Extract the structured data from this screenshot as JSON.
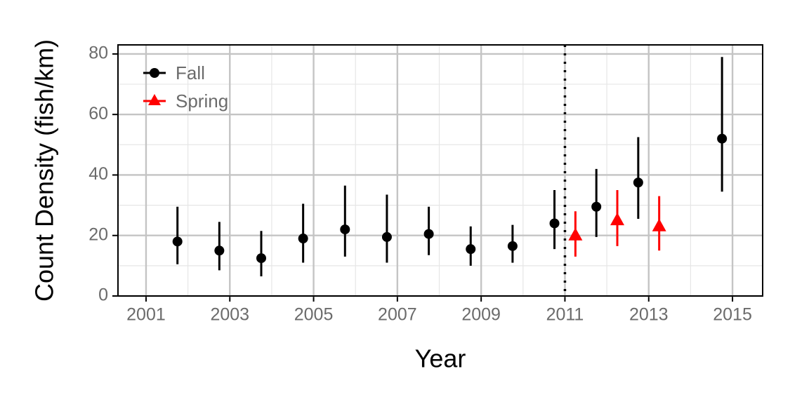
{
  "chart_data": {
    "type": "errorbar",
    "x_label": "Year",
    "y_label": "Count Density (fish/km)",
    "xlim": [
      2000.33,
      2015.72
    ],
    "ylim": [
      0,
      83
    ],
    "xticks": [
      2001,
      2003,
      2005,
      2007,
      2009,
      2011,
      2013,
      2015
    ],
    "yticks": [
      0,
      20,
      40,
      60,
      80
    ],
    "grid": true,
    "legend": "top-left",
    "vline": 2011,
    "series": [
      {
        "name": "Fall",
        "color": "#000000",
        "marker": "circle",
        "x": [
          2001.75,
          2002.75,
          2003.75,
          2004.75,
          2005.75,
          2006.75,
          2007.75,
          2008.75,
          2009.75,
          2010.75,
          2011.75,
          2012.75,
          2014.75
        ],
        "values": [
          18,
          15,
          12.5,
          19,
          22,
          19.5,
          20.5,
          15.5,
          16.5,
          24,
          29.5,
          37.5,
          52
        ],
        "lower": [
          10.5,
          8.5,
          6.5,
          11,
          13,
          11,
          13.5,
          10,
          11,
          15.5,
          19.5,
          25.5,
          34.5
        ],
        "upper": [
          29.5,
          24.5,
          21.5,
          30.5,
          36.5,
          33.5,
          29.5,
          23,
          23.5,
          35,
          42,
          52.5,
          79
        ]
      },
      {
        "name": "Spring",
        "color": "#ff0000",
        "marker": "triangle",
        "x": [
          2011.25,
          2012.25,
          2013.25
        ],
        "values": [
          20,
          25,
          23
        ],
        "lower": [
          13,
          16.5,
          15
        ],
        "upper": [
          28,
          35,
          33
        ]
      }
    ]
  }
}
